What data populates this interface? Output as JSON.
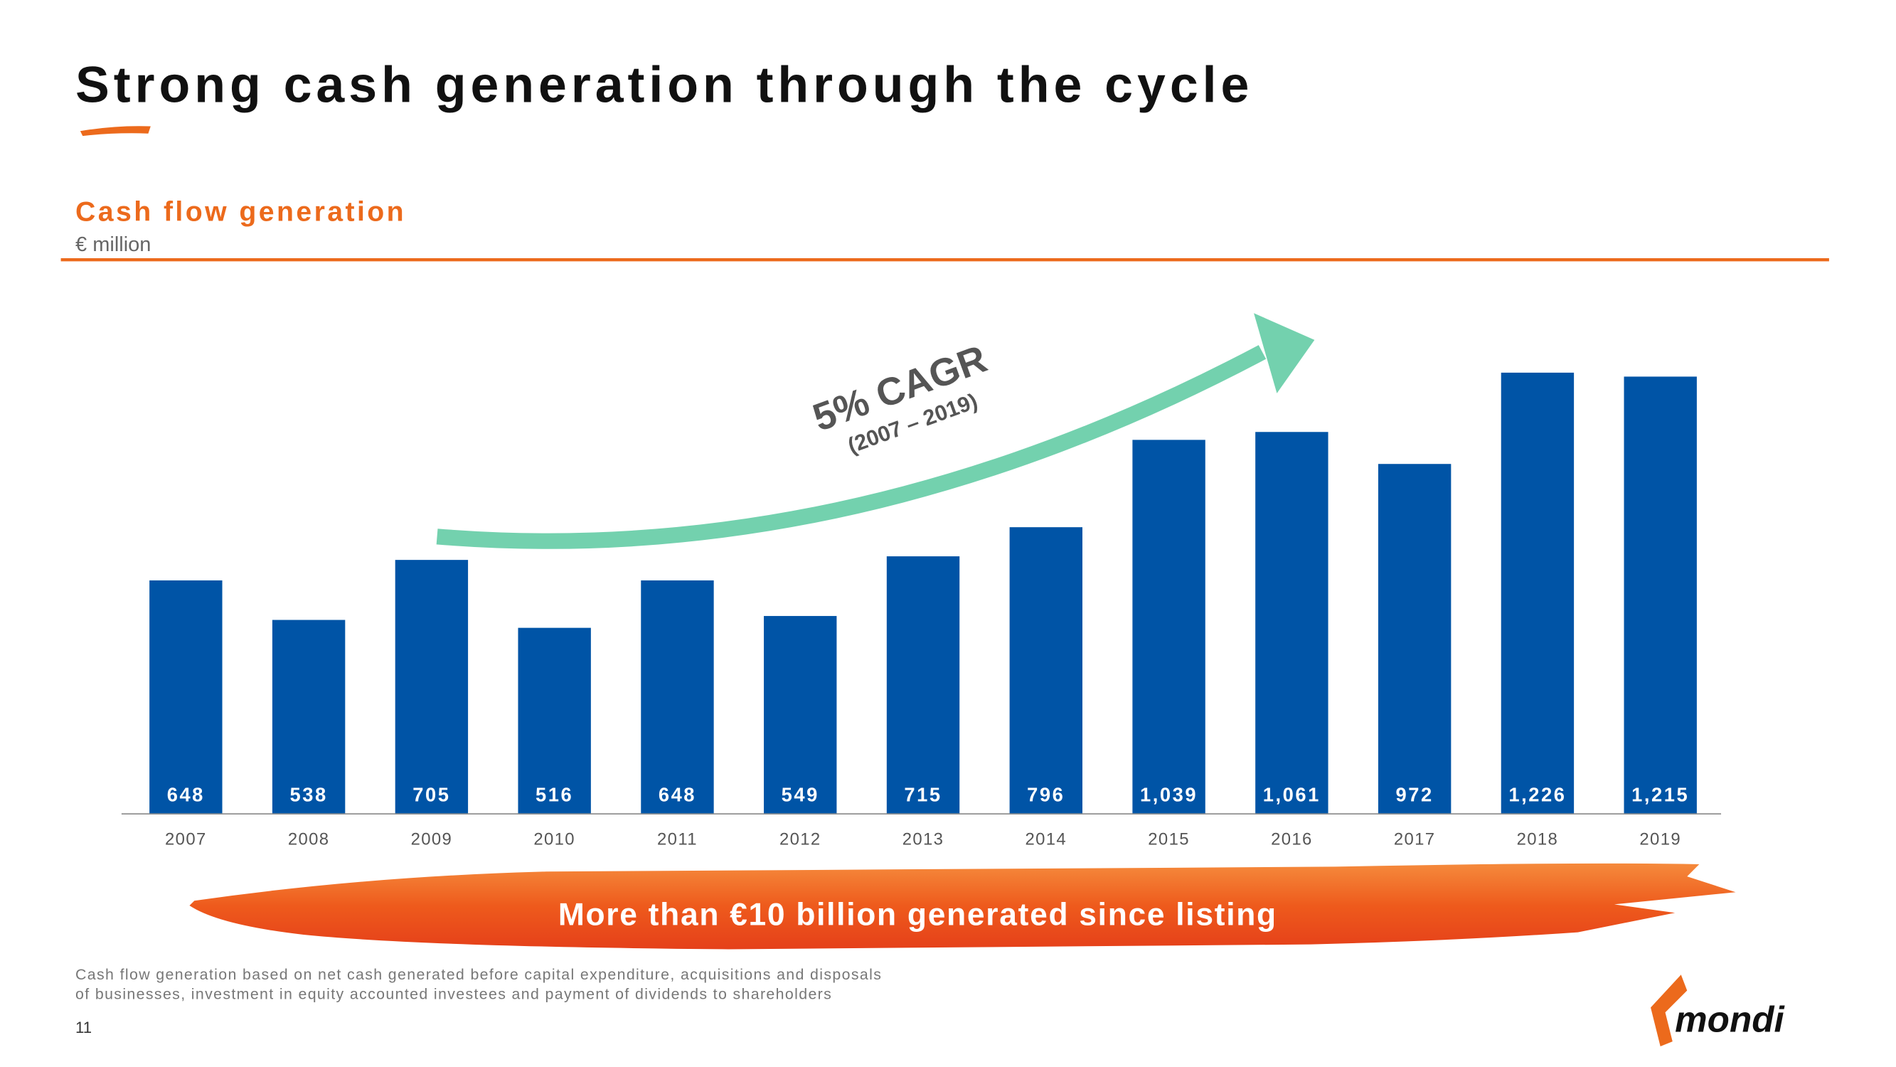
{
  "title": "Strong cash generation through the cycle",
  "chart_data": {
    "type": "bar",
    "title": "Cash flow generation",
    "subtitle": "€ million",
    "categories": [
      "2007",
      "2008",
      "2009",
      "2010",
      "2011",
      "2012",
      "2013",
      "2014",
      "2015",
      "2016",
      "2017",
      "2018",
      "2019"
    ],
    "values": [
      648,
      538,
      705,
      516,
      648,
      549,
      715,
      796,
      1039,
      1061,
      972,
      1226,
      1215
    ],
    "value_labels": [
      "648",
      "538",
      "705",
      "516",
      "648",
      "549",
      "715",
      "796",
      "1,039",
      "1,061",
      "972",
      "1,226",
      "1,215"
    ],
    "color": "#0054a6",
    "annotations": [
      "5% CAGR",
      "(2007 – 2019)"
    ]
  },
  "banner": "More than €10 billion generated since listing",
  "footnote": [
    "Cash flow generation based on net cash generated before capital expenditure, acquisitions and disposals",
    "of businesses, investment in equity accounted investees and payment of dividends to shareholders"
  ],
  "page_number": "11",
  "logo": "mondi"
}
